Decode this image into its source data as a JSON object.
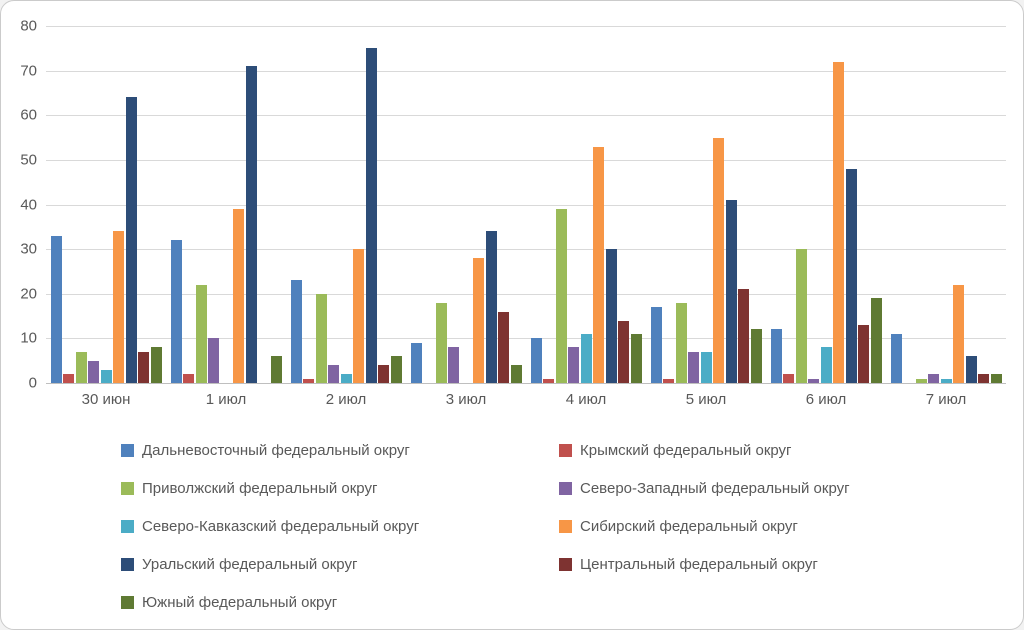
{
  "chart_data": {
    "type": "bar",
    "title": "",
    "xlabel": "",
    "ylabel": "",
    "categories": [
      "30 июн",
      "1 июл",
      "2 июл",
      "3 июл",
      "4 июл",
      "5 июл",
      "6 июл",
      "7 июл"
    ],
    "series": [
      {
        "name": "Дальневосточный федеральный округ",
        "color": "#4F81BD",
        "values": [
          33,
          32,
          23,
          9,
          10,
          17,
          12,
          11
        ]
      },
      {
        "name": "Крымский федеральный округ",
        "color": "#C0504D",
        "values": [
          2,
          2,
          1,
          0,
          1,
          1,
          2,
          0
        ]
      },
      {
        "name": "Приволжский федеральный округ",
        "color": "#9BBB59",
        "values": [
          7,
          22,
          20,
          18,
          39,
          18,
          30,
          1
        ]
      },
      {
        "name": "Северо-Западный федеральный округ",
        "color": "#8064A2",
        "values": [
          5,
          10,
          4,
          8,
          8,
          7,
          1,
          2
        ]
      },
      {
        "name": "Северо-Кавказский федеральный округ",
        "color": "#4BACC6",
        "values": [
          3,
          0,
          2,
          0,
          11,
          7,
          8,
          1
        ]
      },
      {
        "name": "Сибирский федеральный округ",
        "color": "#F79646",
        "values": [
          34,
          39,
          30,
          28,
          53,
          55,
          72,
          22
        ]
      },
      {
        "name": "Уральский федеральный округ",
        "color": "#2D4D78",
        "values": [
          64,
          71,
          75,
          34,
          30,
          41,
          48,
          6
        ]
      },
      {
        "name": "Центральный федеральный округ",
        "color": "#7E3331",
        "values": [
          7,
          0,
          4,
          16,
          14,
          21,
          13,
          2
        ]
      },
      {
        "name": "Южный федеральный округ",
        "color": "#5F7A33",
        "values": [
          8,
          6,
          6,
          4,
          11,
          12,
          19,
          2
        ]
      }
    ],
    "ylim": [
      0,
      80
    ],
    "yticks": [
      0,
      10,
      20,
      30,
      40,
      50,
      60,
      70,
      80
    ],
    "grid": true,
    "legend_position": "bottom",
    "legend_columns": 2
  },
  "colors": {
    "text": "#595959",
    "gridline": "#D9D9D9",
    "axis_line": "#BFBFBF",
    "frame_border": "#CBCBCB",
    "background": "#FFFFFF"
  }
}
